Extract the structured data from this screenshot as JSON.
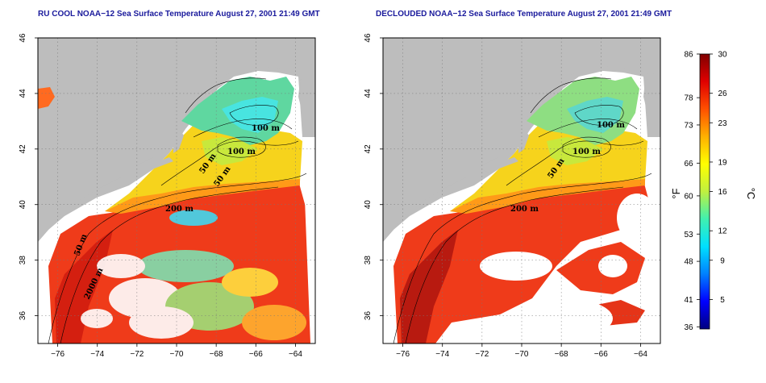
{
  "panels": [
    {
      "title": "RU COOL NOAA−12 Sea Surface Temperature August 27, 2001 21:49 GMT",
      "contour_labels": [
        "100 m",
        "100 m",
        "50 m",
        "50 m",
        "200 m",
        "50 m",
        "2000 m"
      ]
    },
    {
      "title": "DECLOUDED NOAA−12 Sea Surface Temperature August 27, 2001 21:49 GMT",
      "contour_labels": [
        "100 m",
        "100 m",
        "50 m",
        "200 m"
      ]
    }
  ],
  "map_axes": {
    "longitude_ticks": [
      "−76",
      "−74",
      "−72",
      "−70",
      "−68",
      "−66",
      "−64"
    ],
    "latitude_ticks": [
      "36",
      "38",
      "40",
      "42",
      "44",
      "46"
    ],
    "lon_range": [
      -77,
      -63
    ],
    "lat_range": [
      35,
      46
    ]
  },
  "colorbar": {
    "fahrenheit_label": "°F",
    "celsius_label": "°C",
    "fahrenheit_ticks": [
      "86",
      "78",
      "73",
      "66",
      "60",
      "53",
      "48",
      "41",
      "36"
    ],
    "celsius_ticks": [
      "30",
      "26",
      "23",
      "19",
      "16",
      "12",
      "9",
      "5"
    ],
    "range_c": [
      2,
      30
    ],
    "colors": [
      "#000080",
      "#0000ff",
      "#0080ff",
      "#00e0ff",
      "#40f0b0",
      "#c0f040",
      "#ffff00",
      "#ffb000",
      "#ff5000",
      "#e00000",
      "#800000"
    ]
  }
}
